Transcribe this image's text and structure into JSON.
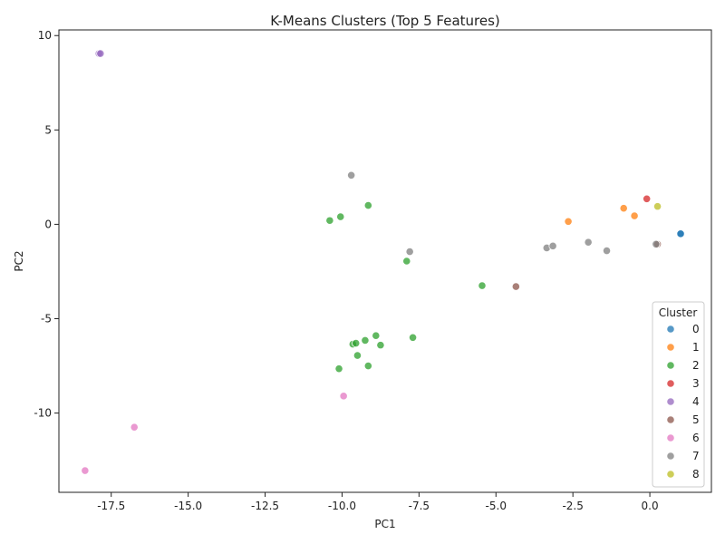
{
  "chart_data": {
    "type": "scatter",
    "title": "K-Means Clusters (Top 5 Features)",
    "xlabel": "PC1",
    "ylabel": "PC2",
    "xlim": [
      -19.2,
      2.0
    ],
    "ylim": [
      -14.2,
      10.3
    ],
    "xticks": [
      -17.5,
      -15.0,
      -12.5,
      -10.0,
      -7.5,
      -5.0,
      -2.5,
      0.0
    ],
    "xtick_labels": [
      "-17.5",
      "-15.0",
      "-12.5",
      "-10.0",
      "-7.5",
      "-5.0",
      "-2.5",
      "0.0"
    ],
    "yticks": [
      10,
      5,
      0,
      -5,
      -10
    ],
    "ytick_labels": [
      "10",
      "5",
      "0",
      "-5",
      "-10"
    ],
    "grid": false,
    "legend": {
      "title": "Cluster",
      "placement": "bottom-right",
      "entries": [
        "0",
        "1",
        "2",
        "3",
        "4",
        "5",
        "6",
        "7",
        "8"
      ]
    },
    "colors": {
      "0": "#1f77b4",
      "1": "#ff7f0e",
      "2": "#2ca02c",
      "3": "#d62728",
      "4": "#9467bd",
      "5": "#8c564b",
      "6": "#e377c2",
      "7": "#7f7f7f",
      "8": "#bcbd22"
    },
    "series": [
      {
        "name": "0",
        "points": [
          [
            1.0,
            -0.5
          ],
          [
            1.0,
            -0.5
          ]
        ]
      },
      {
        "name": "1",
        "points": [
          [
            -0.85,
            0.85
          ],
          [
            -0.5,
            0.45
          ],
          [
            -2.65,
            0.15
          ]
        ]
      },
      {
        "name": "2",
        "points": [
          [
            -10.4,
            0.2
          ],
          [
            -10.05,
            0.4
          ],
          [
            -9.15,
            1.0
          ],
          [
            -7.9,
            -1.95
          ],
          [
            -5.45,
            -3.25
          ],
          [
            -9.65,
            -6.35
          ],
          [
            -9.55,
            -6.3
          ],
          [
            -9.25,
            -6.15
          ],
          [
            -8.9,
            -5.9
          ],
          [
            -8.75,
            -6.4
          ],
          [
            -7.7,
            -6.0
          ],
          [
            -9.5,
            -6.95
          ],
          [
            -10.1,
            -7.65
          ],
          [
            -9.15,
            -7.5
          ]
        ]
      },
      {
        "name": "3",
        "points": [
          [
            -0.1,
            1.35
          ]
        ]
      },
      {
        "name": "4",
        "points": [
          [
            -17.9,
            9.05
          ],
          [
            -17.85,
            9.05
          ]
        ]
      },
      {
        "name": "5",
        "points": [
          [
            -4.35,
            -3.3
          ],
          [
            0.25,
            -1.05
          ]
        ]
      },
      {
        "name": "6",
        "points": [
          [
            -18.35,
            -13.05
          ],
          [
            -16.75,
            -10.75
          ],
          [
            -9.95,
            -9.1
          ]
        ]
      },
      {
        "name": "7",
        "points": [
          [
            -9.7,
            2.6
          ],
          [
            -7.8,
            -1.45
          ],
          [
            -3.35,
            -1.25
          ],
          [
            -3.15,
            -1.15
          ],
          [
            -2.0,
            -0.95
          ],
          [
            -1.4,
            -1.4
          ],
          [
            0.2,
            -1.05
          ]
        ]
      },
      {
        "name": "8",
        "points": [
          [
            0.25,
            0.95
          ]
        ]
      }
    ]
  }
}
